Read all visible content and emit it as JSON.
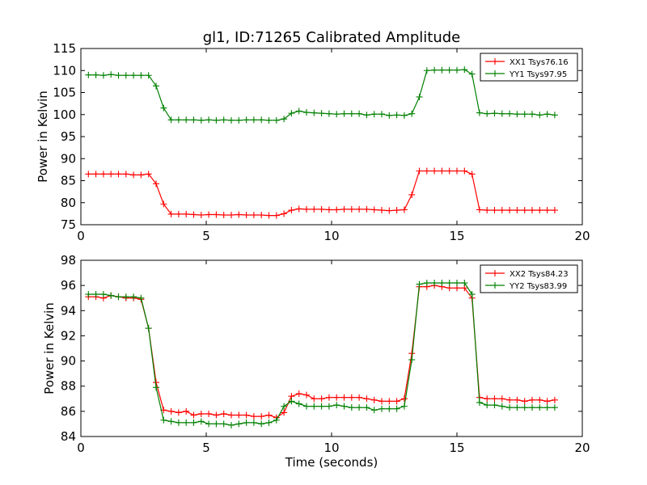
{
  "chart_data": [
    {
      "type": "line",
      "title": "gl1, ID:71265 Calibrated Amplitude",
      "xlabel": "",
      "ylabel": "Power in Kelvin",
      "xlim": [
        0,
        20
      ],
      "ylim": [
        75,
        115
      ],
      "xticks": [
        0,
        5,
        10,
        15,
        20
      ],
      "yticks": [
        75,
        80,
        85,
        90,
        95,
        100,
        105,
        110,
        115
      ],
      "grid": false,
      "legend": "top-right",
      "x": [
        0.3,
        0.6,
        0.9,
        1.2,
        1.5,
        1.8,
        2.1,
        2.4,
        2.7,
        3.0,
        3.3,
        3.6,
        3.9,
        4.2,
        4.5,
        4.8,
        5.1,
        5.4,
        5.7,
        6.0,
        6.3,
        6.6,
        6.9,
        7.2,
        7.5,
        7.8,
        8.1,
        8.4,
        8.7,
        9.0,
        9.3,
        9.6,
        9.9,
        10.2,
        10.5,
        10.8,
        11.1,
        11.4,
        11.7,
        12.0,
        12.3,
        12.6,
        12.9,
        13.2,
        13.5,
        13.8,
        14.1,
        14.4,
        14.7,
        15.0,
        15.3,
        15.6,
        15.9,
        16.2,
        16.5,
        16.8,
        17.1,
        17.4,
        17.7,
        18.0,
        18.3,
        18.6,
        18.9
      ],
      "series": [
        {
          "name": "XX1 Tsys76.16",
          "color": "#ff0000",
          "values": [
            86.5,
            86.5,
            86.5,
            86.5,
            86.5,
            86.5,
            86.3,
            86.3,
            86.5,
            84.3,
            79.7,
            77.4,
            77.4,
            77.4,
            77.3,
            77.2,
            77.3,
            77.3,
            77.2,
            77.2,
            77.3,
            77.2,
            77.2,
            77.2,
            77.1,
            77.1,
            77.5,
            78.3,
            78.6,
            78.5,
            78.5,
            78.5,
            78.4,
            78.4,
            78.5,
            78.5,
            78.5,
            78.5,
            78.4,
            78.3,
            78.2,
            78.3,
            78.4,
            81.8,
            87.2,
            87.2,
            87.2,
            87.2,
            87.2,
            87.2,
            87.2,
            86.5,
            78.4,
            78.3,
            78.3,
            78.3,
            78.3,
            78.3,
            78.3,
            78.3,
            78.3,
            78.3,
            78.3
          ]
        },
        {
          "name": "YY1 Tsys97.95",
          "color": "#008000",
          "values": [
            109.0,
            109.0,
            108.9,
            109.1,
            108.9,
            108.9,
            108.9,
            108.9,
            108.9,
            106.5,
            101.5,
            98.8,
            98.8,
            98.8,
            98.8,
            98.7,
            98.8,
            98.7,
            98.8,
            98.7,
            98.7,
            98.8,
            98.8,
            98.8,
            98.7,
            98.7,
            99.0,
            100.3,
            100.8,
            100.5,
            100.4,
            100.3,
            100.2,
            100.1,
            100.2,
            100.2,
            100.2,
            99.9,
            100.1,
            100.1,
            99.8,
            99.9,
            99.8,
            100.2,
            104.0,
            110.0,
            110.1,
            110.1,
            110.1,
            110.1,
            110.2,
            109.2,
            100.4,
            100.2,
            100.3,
            100.2,
            100.2,
            100.1,
            100.1,
            100.1,
            99.9,
            100.1,
            99.9
          ]
        }
      ]
    },
    {
      "type": "line",
      "title": "",
      "xlabel": "Time (seconds)",
      "ylabel": "Power in Kelvin",
      "xlim": [
        0,
        20
      ],
      "ylim": [
        84,
        98
      ],
      "xticks": [
        0,
        5,
        10,
        15,
        20
      ],
      "yticks": [
        84,
        86,
        88,
        90,
        92,
        94,
        96,
        98
      ],
      "grid": false,
      "legend": "top-right",
      "x": [
        0.3,
        0.6,
        0.9,
        1.2,
        1.5,
        1.8,
        2.1,
        2.4,
        2.7,
        3.0,
        3.3,
        3.6,
        3.9,
        4.2,
        4.5,
        4.8,
        5.1,
        5.4,
        5.7,
        6.0,
        6.3,
        6.6,
        6.9,
        7.2,
        7.5,
        7.8,
        8.1,
        8.4,
        8.7,
        9.0,
        9.3,
        9.6,
        9.9,
        10.2,
        10.5,
        10.8,
        11.1,
        11.4,
        11.7,
        12.0,
        12.3,
        12.6,
        12.9,
        13.2,
        13.5,
        13.8,
        14.1,
        14.4,
        14.7,
        15.0,
        15.3,
        15.6,
        15.9,
        16.2,
        16.5,
        16.8,
        17.1,
        17.4,
        17.7,
        18.0,
        18.3,
        18.6,
        18.9
      ],
      "series": [
        {
          "name": "XX2 Tsys84.23",
          "color": "#ff0000",
          "values": [
            95.1,
            95.1,
            95.0,
            95.2,
            95.1,
            95.0,
            95.0,
            94.9,
            92.6,
            88.3,
            86.1,
            86.0,
            85.9,
            86.0,
            85.7,
            85.8,
            85.8,
            85.7,
            85.8,
            85.7,
            85.7,
            85.7,
            85.6,
            85.6,
            85.7,
            85.5,
            85.9,
            87.2,
            87.4,
            87.3,
            87.0,
            87.0,
            87.1,
            87.1,
            87.1,
            87.1,
            87.1,
            87.0,
            86.9,
            86.8,
            86.8,
            86.8,
            87.0,
            90.6,
            95.9,
            95.9,
            96.0,
            95.9,
            95.8,
            95.8,
            95.8,
            95.0,
            87.1,
            87.0,
            87.0,
            87.0,
            86.9,
            86.9,
            86.8,
            86.9,
            86.9,
            86.8,
            86.9
          ]
        },
        {
          "name": "YY2 Tsys83.99",
          "color": "#008000",
          "values": [
            95.3,
            95.3,
            95.3,
            95.2,
            95.1,
            95.1,
            95.1,
            95.0,
            92.6,
            87.9,
            85.3,
            85.2,
            85.1,
            85.1,
            85.1,
            85.2,
            85.0,
            85.0,
            85.0,
            84.9,
            85.0,
            85.1,
            85.1,
            85.0,
            85.1,
            85.3,
            86.4,
            86.8,
            86.6,
            86.4,
            86.4,
            86.4,
            86.4,
            86.5,
            86.4,
            86.3,
            86.3,
            86.3,
            86.1,
            86.2,
            86.2,
            86.2,
            86.4,
            90.1,
            96.1,
            96.2,
            96.2,
            96.2,
            96.2,
            96.2,
            96.2,
            95.3,
            86.7,
            86.5,
            86.5,
            86.4,
            86.3,
            86.3,
            86.3,
            86.3,
            86.3,
            86.3,
            86.3
          ]
        }
      ]
    }
  ]
}
